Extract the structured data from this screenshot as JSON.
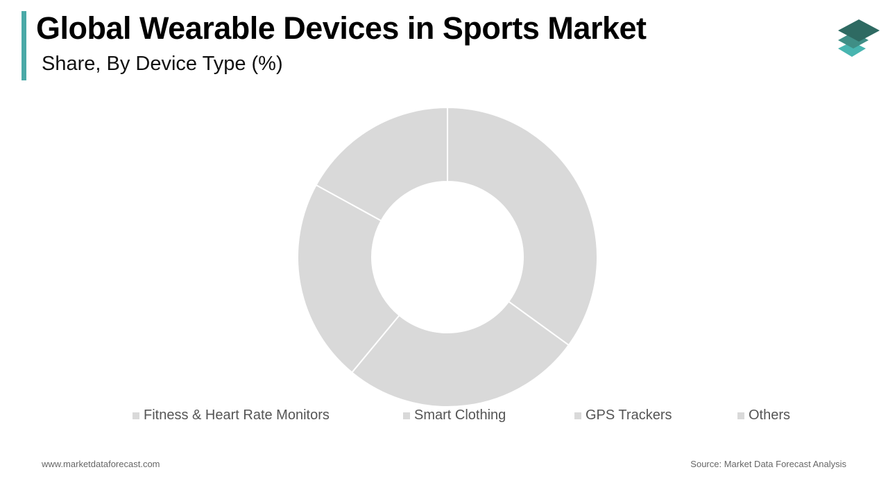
{
  "header": {
    "title": "Global Wearable Devices in Sports Market",
    "subtitle": "Share, By Device Type (%)",
    "accent_color": "#4aa9a7",
    "logo_icon": "stacked-layers-icon",
    "logo_colors": [
      "#2e6a62",
      "#3f8e86",
      "#48b5b0"
    ]
  },
  "legend": {
    "items": [
      {
        "label": "Fitness & Heart Rate Monitors",
        "color": "#d9d9d9"
      },
      {
        "label": "Smart Clothing",
        "color": "#d9d9d9"
      },
      {
        "label": "GPS Trackers",
        "color": "#d9d9d9"
      },
      {
        "label": "Others",
        "color": "#d9d9d9"
      }
    ]
  },
  "footer": {
    "website": "www.marketdataforecast.com",
    "source": "Source: Market Data Forecast Analysis"
  },
  "chart_data": {
    "type": "pie",
    "subtype": "donut",
    "title": "Global Wearable Devices in Sports Market",
    "subtitle": "Share, By Device Type (%)",
    "categories": [
      "Fitness & Heart Rate Monitors",
      "Smart Clothing",
      "GPS Trackers",
      "Others"
    ],
    "values": [
      35,
      26,
      22,
      17
    ],
    "unit": "%",
    "colors": [
      "#d9d9d9",
      "#d9d9d9",
      "#d9d9d9",
      "#d9d9d9"
    ],
    "start_angle_deg": 0,
    "direction": "clockwise",
    "legend_position": "bottom",
    "data_labels": false
  }
}
